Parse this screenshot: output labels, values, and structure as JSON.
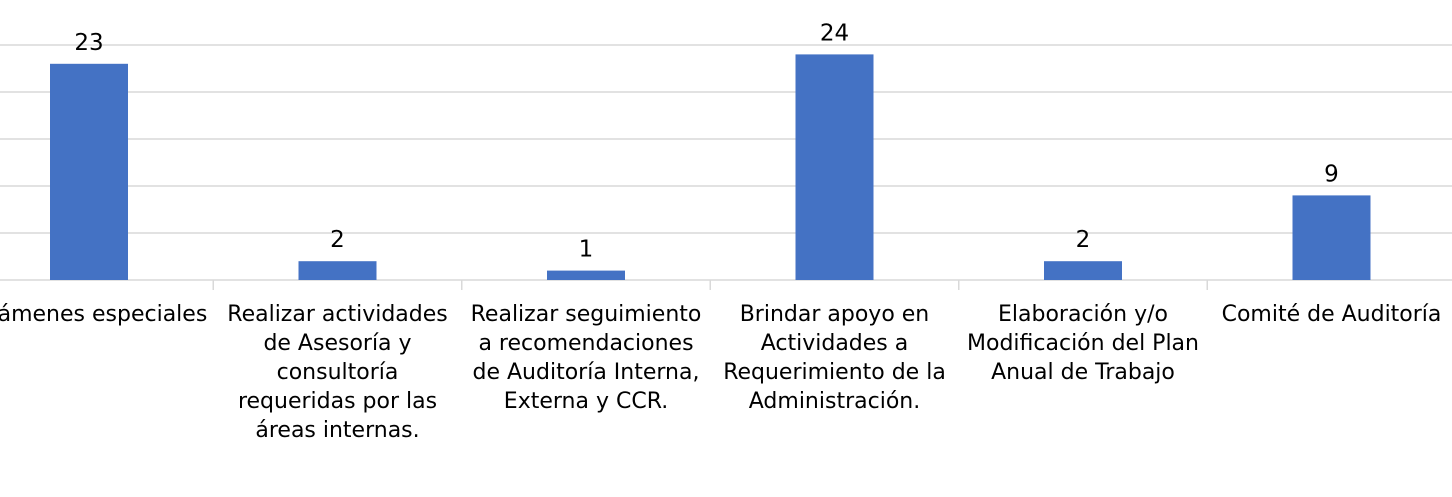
{
  "chart_data": {
    "type": "bar",
    "categories": [
      "Exámenes especiales",
      "Realizar actividades de Asesoría y consultoría requeridas por las áreas internas.",
      "Realizar seguimiento a recomendaciones de Auditoría Interna, Externa y CCR.",
      "Brindar apoyo en Actividades a Requerimiento de la Administración.",
      "Elaboración y/o Modificación del Plan Anual de Trabajo",
      "Comité de Auditoría"
    ],
    "values": [
      23,
      2,
      1,
      24,
      2,
      9
    ],
    "color": "#4472c4",
    "ylim": [
      0,
      25
    ],
    "yticks": [
      0,
      5,
      10,
      15,
      20,
      25
    ],
    "grid": true
  }
}
